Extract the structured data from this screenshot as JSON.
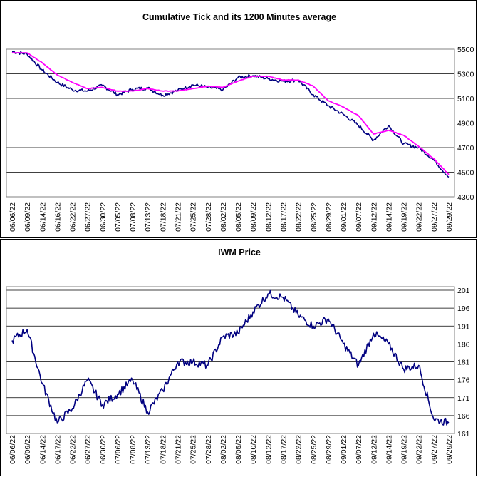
{
  "colors": {
    "series_price": "#000080",
    "series_average": "#ff00ff",
    "grid": "#000000",
    "background": "#ffffff"
  },
  "chart_data": [
    {
      "type": "line",
      "title": "Cumulative Tick and its 1200 Minutes average",
      "xlabel": "",
      "ylabel": "",
      "x": [
        "06/06/22",
        "06/09/22",
        "06/14/22",
        "06/16/22",
        "06/22/22",
        "06/27/22",
        "06/30/22",
        "07/05/22",
        "07/08/22",
        "07/13/22",
        "07/18/22",
        "07/21/22",
        "07/25/22",
        "07/28/22",
        "08/02/22",
        "08/05/22",
        "08/09/22",
        "08/12/22",
        "08/17/22",
        "08/22/22",
        "08/25/22",
        "08/29/22",
        "09/01/22",
        "09/07/22",
        "09/12/22",
        "09/14/22",
        "09/19/22",
        "09/22/22",
        "09/27/22",
        "09/29/22"
      ],
      "y_ticks": [
        5500,
        5300,
        5100,
        4900,
        4700,
        4500,
        4300
      ],
      "ylim": [
        4300,
        5500
      ],
      "grid": true,
      "y_axis_side": "right",
      "legend": "none",
      "series": [
        {
          "values": [
            5480,
            5460,
            5330,
            5230,
            5170,
            5160,
            5205,
            5130,
            5175,
            5185,
            5125,
            5165,
            5210,
            5190,
            5170,
            5270,
            5285,
            5260,
            5240,
            5250,
            5130,
            5040,
            4970,
            4880,
            4760,
            4880,
            4730,
            4700,
            4600,
            4460
          ]
        },
        {
          "values": [
            5470,
            5470,
            5390,
            5290,
            5230,
            5180,
            5190,
            5160,
            5160,
            5180,
            5160,
            5160,
            5180,
            5200,
            5190,
            5240,
            5280,
            5280,
            5250,
            5250,
            5200,
            5080,
            5030,
            4960,
            4810,
            4840,
            4800,
            4710,
            4610,
            4480
          ]
        }
      ]
    },
    {
      "type": "line",
      "title": "IWM Price",
      "xlabel": "",
      "ylabel": "",
      "x": [
        "06/06/22",
        "06/09/22",
        "06/14/22",
        "06/17/22",
        "06/22/22",
        "06/27/22",
        "06/30/22",
        "07/06/22",
        "07/08/22",
        "07/13/22",
        "07/18/22",
        "07/21/22",
        "07/25/22",
        "07/28/22",
        "08/02/22",
        "08/05/22",
        "08/10/22",
        "08/12/22",
        "08/17/22",
        "08/22/22",
        "08/25/22",
        "08/29/22",
        "09/01/22",
        "09/07/22",
        "09/12/22",
        "09/14/22",
        "09/19/22",
        "09/22/22",
        "09/27/22",
        "09/29/22"
      ],
      "y_ticks": [
        201,
        196,
        191,
        186,
        181,
        176,
        171,
        166,
        161
      ],
      "ylim": [
        161,
        202
      ],
      "grid": true,
      "y_axis_side": "right",
      "legend": "none",
      "series": [
        {
          "values": [
            187,
            190,
            175,
            164,
            168,
            176,
            169,
            172,
            176,
            167,
            173,
            181,
            181,
            180,
            188,
            189,
            195,
            200,
            199,
            194,
            191,
            193,
            186,
            180,
            189,
            186,
            179,
            180,
            165,
            164
          ]
        }
      ]
    }
  ]
}
